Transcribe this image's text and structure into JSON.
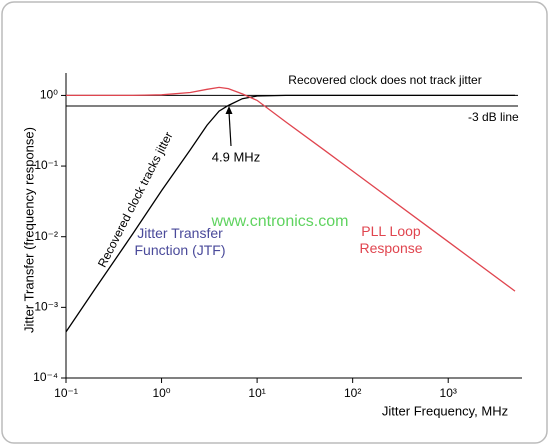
{
  "chart_data": {
    "type": "line",
    "x_label": "Jitter Frequency, MHz",
    "y_label": "Jitter Transfer (frequency response)",
    "log_x": true,
    "log_y": true,
    "x": [
      0.1,
      0.2,
      0.5,
      1,
      2,
      3,
      4,
      5,
      7,
      10,
      20,
      50,
      100,
      1000,
      5000
    ],
    "series": [
      {
        "name": "Jitter Transfer Function (JTF)",
        "color": "#000000",
        "values": [
          0.00045,
          0.0018,
          0.011,
          0.045,
          0.17,
          0.38,
          0.6,
          0.72,
          0.9,
          0.98,
          1,
          1,
          1,
          1,
          1
        ]
      },
      {
        "name": "PLL Loop Response",
        "color": "#e0454f",
        "values": [
          1,
          1,
          1,
          1.02,
          1.1,
          1.22,
          1.3,
          1.25,
          1.05,
          0.85,
          0.42,
          0.17,
          0.085,
          0.0085,
          0.0017
        ]
      }
    ],
    "hlines": [
      {
        "value": 1,
        "label": "Recovered clock does not track jitter"
      },
      {
        "value": 0.708,
        "label": "-3 dB line"
      }
    ],
    "annotations": [
      "4.9 MHz",
      "Recovered clock tracks jitter",
      "www.cntronics.com"
    ],
    "xlim": [
      0.1,
      5000
    ],
    "ylim": [
      0.0001,
      1.6
    ],
    "xticks": [
      {
        "value": 0.1,
        "label": "10⁻¹"
      },
      {
        "value": 1,
        "label": "10⁰"
      },
      {
        "value": 10,
        "label": "10¹"
      },
      {
        "value": 100,
        "label": "10²"
      },
      {
        "value": 1000,
        "label": "10³"
      }
    ],
    "yticks": [
      {
        "value": 0.0001,
        "label": "10⁻⁴"
      },
      {
        "value": 0.001,
        "label": "10⁻³"
      },
      {
        "value": 0.01,
        "label": "10⁻²"
      },
      {
        "value": 0.1,
        "label": "10⁻¹"
      },
      {
        "value": 1,
        "label": "10⁰"
      }
    ],
    "grid": false
  }
}
